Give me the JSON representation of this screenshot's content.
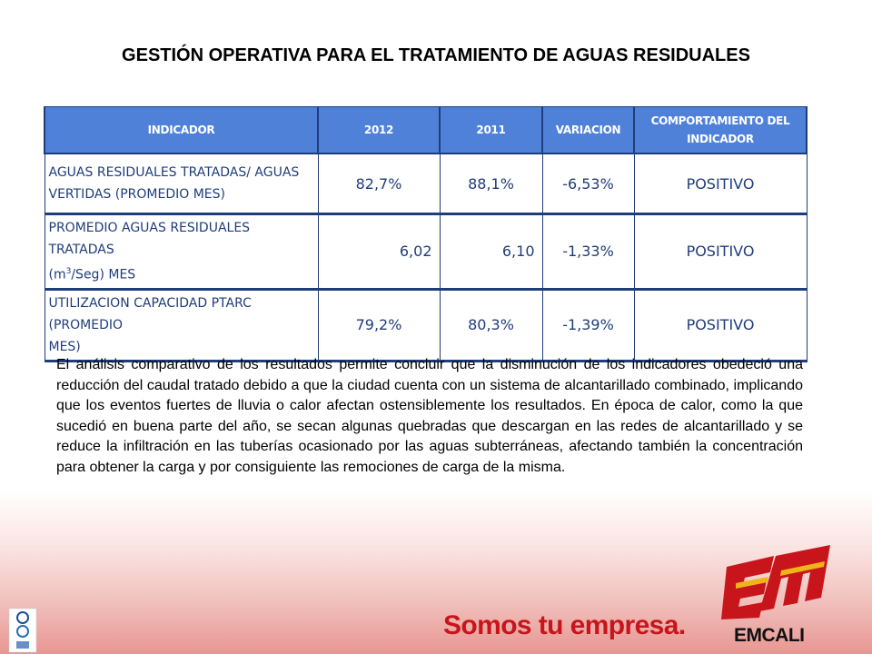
{
  "title": "GESTIÓN OPERATIVA PARA EL TRATAMIENTO DE AGUAS RESIDUALES",
  "table": {
    "headers": {
      "indicador": "INDICADOR",
      "y2012": "2012",
      "y2011": "2011",
      "variacion": "VARIACION",
      "comportamiento_line1": "COMPORTAMIENTO DEL",
      "comportamiento_line2": "INDICADOR"
    },
    "rows": [
      {
        "indicador_line1": "AGUAS RESIDUALES TRATADAS/ AGUAS",
        "indicador_line2": "VERTIDAS  (PROMEDIO MES)",
        "v2012": "82,7%",
        "v2011": "88,1%",
        "variacion": "-6,53%",
        "comportamiento": "POSITIVO"
      },
      {
        "indicador_line1": "PROMEDIO AGUAS RESIDUALES TRATADAS",
        "unit_pre": "(m",
        "unit_sup": "3",
        "unit_post": "/Seg) MES",
        "v2012": "6,02",
        "v2011": "6,10",
        "variacion": "-1,33%",
        "comportamiento": "POSITIVO"
      },
      {
        "indicador_line1": "UTILIZACION CAPACIDAD PTARC (PROMEDIO",
        "indicador_line2": "MES)",
        "v2012": "79,2%",
        "v2011": "80,3%",
        "variacion": "-1,39%",
        "comportamiento": "POSITIVO"
      }
    ]
  },
  "analysis": "El análisis comparativo de los resultados permite concluir que la disminución de los indicadores obedeció una reducción del caudal tratado debido a que la ciudad cuenta con un sistema de alcantarillado combinado, implicando que los eventos fuertes de lluvia o calor afectan ostensiblemente los resultados. En época de calor, como la que sucedió en buena parte del año,  se secan algunas quebradas que descargan en las redes de alcantarillado y se reduce la infiltración en las tuberías ocasionado por las aguas subterráneas, afectando también la concentración para obtener la carga y por consiguiente las remociones de carga de la misma.",
  "footer": {
    "slogan": "Somos tu empresa.",
    "logo_text": "EMCALI",
    "brand_color": "#c8151b",
    "accent_color": "#f0b418"
  }
}
